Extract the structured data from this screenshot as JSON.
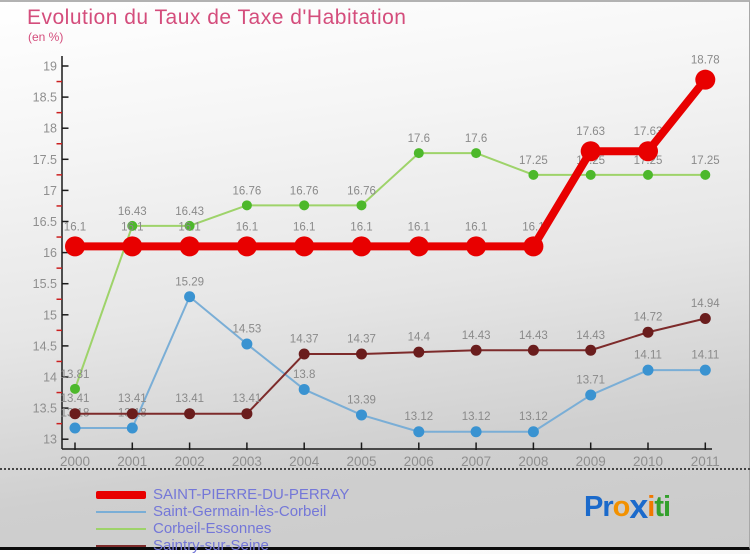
{
  "header": {
    "title": "Evolution du Taux de Taxe d'Habitation",
    "subtitle": "(en %)",
    "title_color": "#d44d7c"
  },
  "chart_data": {
    "type": "line",
    "categories": [
      "2000",
      "2001",
      "2002",
      "2003",
      "2004",
      "2005",
      "2006",
      "2007",
      "2008",
      "2009",
      "2010",
      "2011"
    ],
    "series": [
      {
        "name": "SAINT-PIERRE-DU-PERRAY",
        "line_color": "#e80000",
        "marker_color": "#e80000",
        "line_width": 8,
        "marker_radius": 10,
        "values": [
          16.1,
          16.1,
          16.1,
          16.1,
          16.1,
          16.1,
          16.1,
          16.1,
          16.1,
          17.63,
          17.63,
          18.78
        ]
      },
      {
        "name": "Saint-Germain-lès-Corbeil",
        "line_color": "#7aaed6",
        "marker_color": "#3a93d1",
        "line_width": 2,
        "marker_radius": 5.5,
        "values": [
          13.18,
          13.18,
          15.29,
          14.53,
          13.8,
          13.39,
          13.12,
          13.12,
          13.12,
          13.71,
          14.11,
          14.11
        ]
      },
      {
        "name": "Corbeil-Essonnes",
        "line_color": "#9ed36a",
        "marker_color": "#4db82b",
        "line_width": 2,
        "marker_radius": 5,
        "values": [
          13.81,
          16.43,
          16.43,
          16.76,
          16.76,
          16.76,
          17.6,
          17.6,
          17.25,
          17.25,
          17.25,
          17.25
        ]
      },
      {
        "name": "Saintry-sur-Seine",
        "line_color": "#7d2b2b",
        "marker_color": "#6a1d1d",
        "line_width": 2,
        "marker_radius": 5.5,
        "values": [
          13.41,
          13.41,
          13.41,
          13.41,
          14.37,
          14.37,
          14.4,
          14.43,
          14.43,
          14.43,
          14.72,
          14.94
        ]
      }
    ],
    "title": "Evolution du Taux de Taxe d'Habitation",
    "subtitle": "(en %)",
    "xlabel": "",
    "ylabel": "",
    "ylim": [
      13,
      19
    ],
    "y_major_step": 0.5,
    "y_minor_step": 0.25,
    "grid": false,
    "legend_position": "bottom-left",
    "axis_style": {
      "axis_color": "#1a1a1a",
      "tick_label_color": "#8f8f8f",
      "minor_tick_color": "#cc2020",
      "data_label_color": "#8a8a8a"
    }
  },
  "logo": {
    "text": "Proxiti",
    "parts": [
      {
        "text": "P",
        "color": "#1b6acb"
      },
      {
        "text": "r",
        "color": "#1b6acb"
      },
      {
        "text": "o",
        "color": "#f29100"
      },
      {
        "text": "x",
        "color": "#1b6acb"
      },
      {
        "text": "i",
        "color": "#f07800"
      },
      {
        "text": "t",
        "color": "#33a02c"
      },
      {
        "text": "i",
        "color": "#33a02c"
      }
    ]
  }
}
